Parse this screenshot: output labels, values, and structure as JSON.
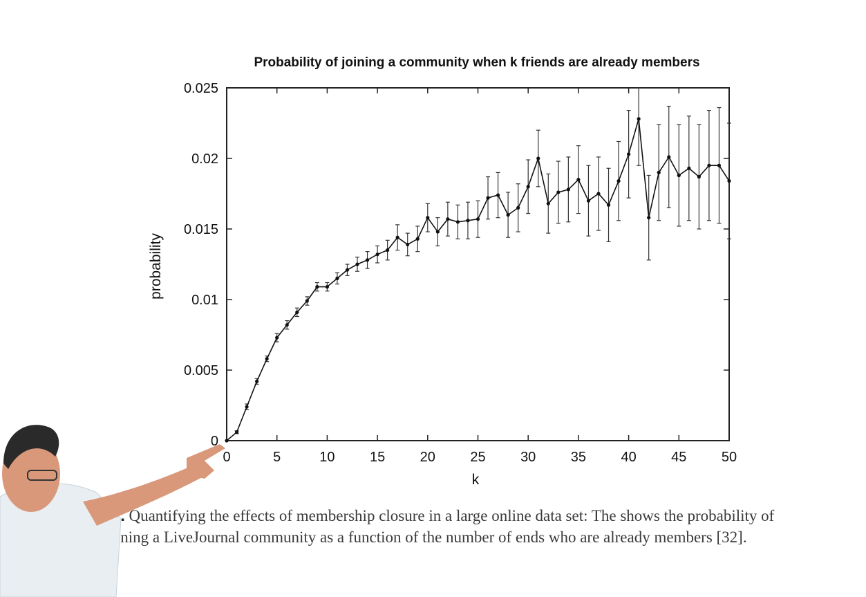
{
  "chart_data": {
    "type": "line",
    "title": "Probability of joining a community when k friends are already members",
    "xlabel": "k",
    "ylabel": "probability",
    "xlim": [
      0,
      50
    ],
    "ylim": [
      0,
      0.025
    ],
    "x_ticks": [
      "0",
      "5",
      "10",
      "15",
      "20",
      "25",
      "30",
      "35",
      "40",
      "45",
      "50"
    ],
    "y_ticks": [
      "0",
      "0.005",
      "0.01",
      "0.015",
      "0.02",
      "0.025"
    ],
    "grid": false,
    "legend": "none",
    "error_bars": true,
    "series": [
      {
        "x": [
          0,
          1,
          2,
          3,
          4,
          5,
          6,
          7,
          8,
          9,
          10,
          11,
          12,
          13,
          14,
          15,
          16,
          17,
          18,
          19,
          20,
          21,
          22,
          23,
          24,
          25,
          26,
          27,
          28,
          29,
          30,
          31,
          32,
          33,
          34,
          35,
          36,
          37,
          38,
          39,
          40,
          41,
          42,
          43,
          44,
          45,
          46,
          47,
          48,
          49,
          50
        ],
        "y": [
          0,
          0.0006,
          0.0024,
          0.0042,
          0.0058,
          0.0073,
          0.0082,
          0.0091,
          0.0099,
          0.0109,
          0.0109,
          0.0115,
          0.0121,
          0.0125,
          0.0128,
          0.0132,
          0.0135,
          0.0144,
          0.0139,
          0.0143,
          0.0158,
          0.0148,
          0.0157,
          0.0155,
          0.0156,
          0.0157,
          0.0172,
          0.0174,
          0.016,
          0.0165,
          0.018,
          0.02,
          0.0168,
          0.0176,
          0.0178,
          0.0185,
          0.017,
          0.0175,
          0.0167,
          0.0184,
          0.0203,
          0.0228,
          0.0158,
          0.019,
          0.0201,
          0.0188,
          0.0193,
          0.0187,
          0.0195,
          0.0195,
          0.0184
        ],
        "err": [
          0,
          0.0001,
          0.0002,
          0.0002,
          0.0002,
          0.0003,
          0.0003,
          0.0003,
          0.0003,
          0.0003,
          0.0003,
          0.0004,
          0.0004,
          0.0005,
          0.0006,
          0.0006,
          0.0007,
          0.0009,
          0.0008,
          0.0009,
          0.001,
          0.001,
          0.0012,
          0.0012,
          0.0013,
          0.0013,
          0.0015,
          0.0016,
          0.0016,
          0.0017,
          0.0019,
          0.002,
          0.0021,
          0.0022,
          0.0023,
          0.0024,
          0.0025,
          0.0026,
          0.0026,
          0.0028,
          0.0031,
          0.0033,
          0.003,
          0.0034,
          0.0036,
          0.0036,
          0.0037,
          0.0037,
          0.0039,
          0.0041,
          0.0041
        ]
      }
    ]
  },
  "caption": {
    "fig_num": "11.",
    "text": "Quantifying the effects of membership closure in a large online data set: The shows the probability of joining a LiveJournal community as a function of the number of ends who are already members [32]."
  },
  "presenter": {
    "icon": "presenter-pointing-icon",
    "skin": "#d9987a",
    "shirt": "#e8eef2",
    "hair": "#2a2a2a"
  }
}
